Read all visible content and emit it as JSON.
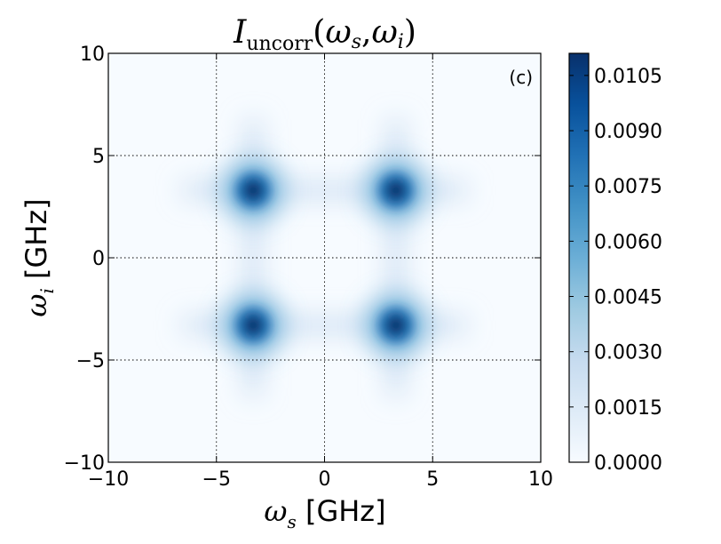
{
  "chart_data": {
    "type": "heatmap",
    "title": {
      "symbol": "I",
      "subscript": "uncorr",
      "args": [
        "ω",
        "s",
        "ω",
        "i"
      ]
    },
    "panel_label": "(c)",
    "xlabel": {
      "symbol": "ω",
      "subscript": "s",
      "unit": "[GHz]"
    },
    "ylabel": {
      "symbol": "ω",
      "subscript": "i",
      "unit": "[GHz]"
    },
    "xlim": [
      -10,
      10
    ],
    "ylim": [
      -10,
      10
    ],
    "x_ticks": [
      -10,
      -5,
      0,
      5,
      10
    ],
    "y_ticks": [
      -10,
      -5,
      0,
      5,
      10
    ],
    "x_tick_labels": [
      "−10",
      "−5",
      "0",
      "5",
      "10"
    ],
    "y_tick_labels": [
      "−10",
      "−5",
      "0",
      "5",
      "10"
    ],
    "grid": "dotted",
    "colormap": "Blues",
    "colorbar": {
      "range": [
        0,
        0.0111
      ],
      "ticks": [
        0,
        0.0015,
        0.003,
        0.0045,
        0.006,
        0.0075,
        0.009,
        0.0105
      ],
      "tick_labels": [
        "0.0000",
        "0.0015",
        "0.0030",
        "0.0045",
        "0.0060",
        "0.0075",
        "0.0090",
        "0.0105"
      ]
    },
    "peaks": [
      {
        "x": -3.3,
        "y": 3.3,
        "value": 0.0111
      },
      {
        "x": 3.3,
        "y": 3.3,
        "value": 0.0111
      },
      {
        "x": -3.3,
        "y": -3.3,
        "value": 0.0111
      },
      {
        "x": 3.3,
        "y": -3.3,
        "value": 0.0111
      }
    ],
    "colors": {
      "low": "#f7fbff",
      "mid": "#6baed6",
      "high": "#08306b"
    }
  }
}
